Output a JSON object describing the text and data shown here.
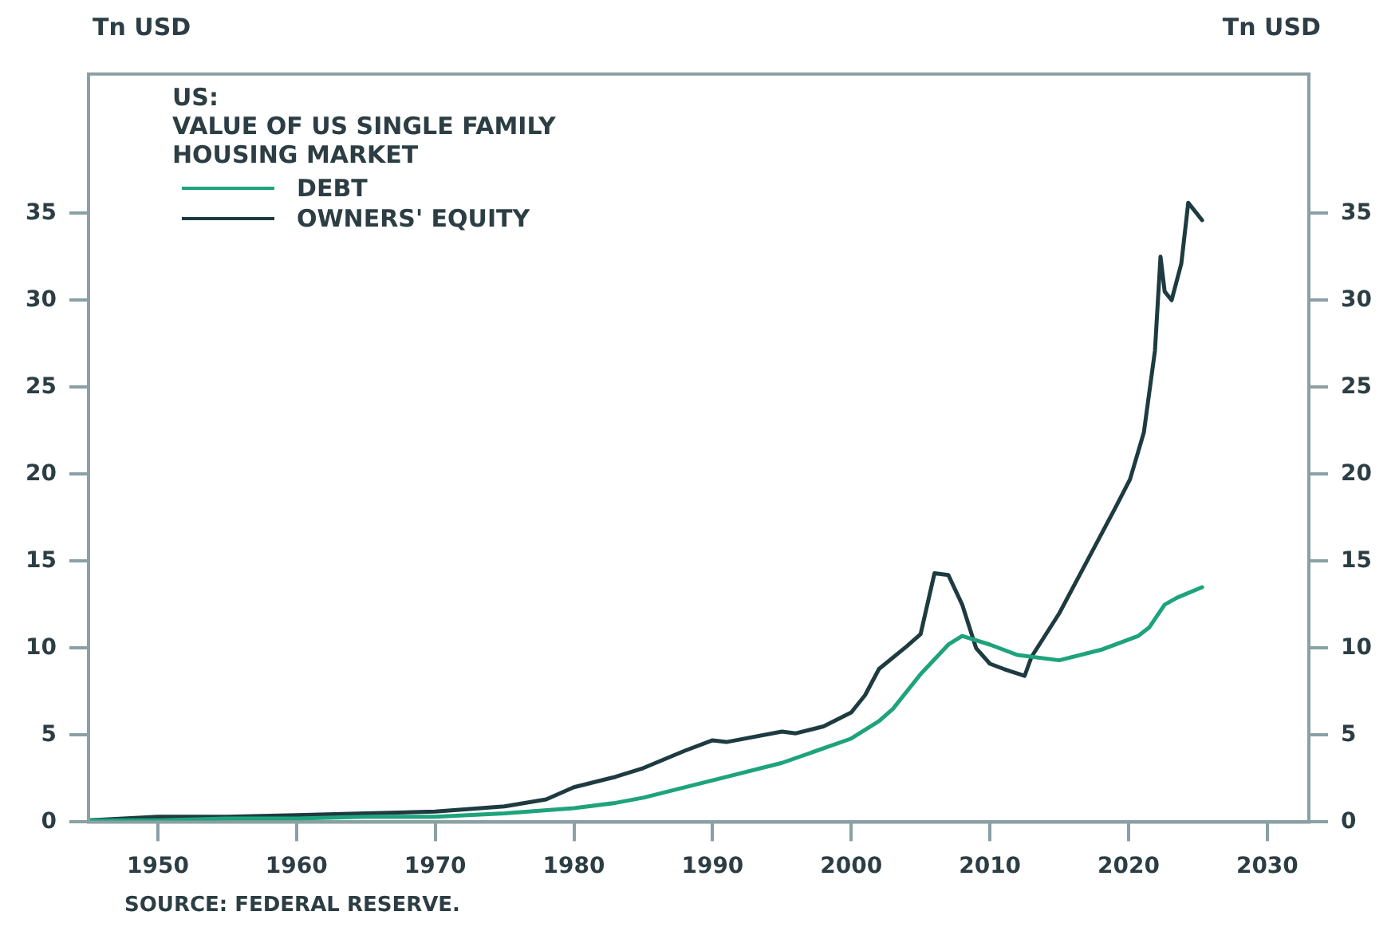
{
  "chart_data": {
    "type": "line",
    "title": "US:",
    "subtitle": "VALUE OF US SINGLE FAMILY HOUSING MARKET",
    "ylabel": "Tn USD",
    "y2label": "Tn USD",
    "annotations": [
      "SOURCE: FEDERAL RESERVE."
    ],
    "xlim": [
      1945,
      2033
    ],
    "xticks": [
      1950,
      1960,
      1970,
      1980,
      1990,
      2000,
      2010,
      2020,
      2030
    ],
    "ylim": [
      0,
      43
    ],
    "yticks": [
      0,
      5,
      10,
      15,
      20,
      25,
      30,
      35
    ],
    "y2lim": [
      0,
      43
    ],
    "y2ticks": [
      0,
      5,
      10,
      15,
      20,
      25,
      30,
      35
    ],
    "grid": false,
    "legend": "top left",
    "marker": "none",
    "line_style": "solid",
    "series": [
      {
        "name": "DEBT",
        "color": "#1ea37c",
        "x": [
          1945,
          1950,
          1955,
          1960,
          1965,
          1970,
          1975,
          1980,
          1983,
          1985,
          1990,
          1995,
          2000,
          2002,
          2003,
          2005,
          2007,
          2008,
          2010,
          2012,
          2015,
          2018,
          2020.7,
          2021.5,
          2022.6,
          2023.5,
          2025.3
        ],
        "values": [
          0.1,
          0.1,
          0.2,
          0.2,
          0.3,
          0.3,
          0.5,
          0.8,
          1.1,
          1.4,
          2.4,
          3.4,
          4.8,
          5.8,
          6.5,
          8.5,
          10.2,
          10.7,
          10.2,
          9.6,
          9.3,
          9.9,
          10.7,
          11.2,
          12.5,
          12.9,
          13.5
        ]
      },
      {
        "name": "OWNERS' EQUITY",
        "color": "#1d3b40",
        "x": [
          1945,
          1950,
          1955,
          1960,
          1965,
          1970,
          1975,
          1978,
          1980,
          1983,
          1985,
          1988,
          1990,
          1991,
          1995,
          1996,
          1998,
          2000,
          2001,
          2002,
          2004,
          2005,
          2006,
          2007,
          2008,
          2009,
          2010,
          2011,
          2012.5,
          2013,
          2015,
          2017,
          2019,
          2020.1,
          2021.1,
          2021.9,
          2022.3,
          2022.6,
          2023.1,
          2023.8,
          2024.3,
          2025.3
        ],
        "values": [
          0.1,
          0.3,
          0.3,
          0.4,
          0.5,
          0.6,
          0.9,
          1.3,
          2.0,
          2.6,
          3.1,
          4.1,
          4.7,
          4.6,
          5.2,
          5.1,
          5.5,
          6.3,
          7.3,
          8.8,
          10.1,
          10.8,
          14.3,
          14.2,
          12.5,
          10.0,
          9.1,
          8.8,
          8.4,
          9.5,
          12.0,
          15.0,
          18.0,
          19.7,
          22.4,
          27.1,
          32.5,
          30.5,
          30.0,
          32.1,
          35.6,
          34.6
        ]
      }
    ]
  }
}
